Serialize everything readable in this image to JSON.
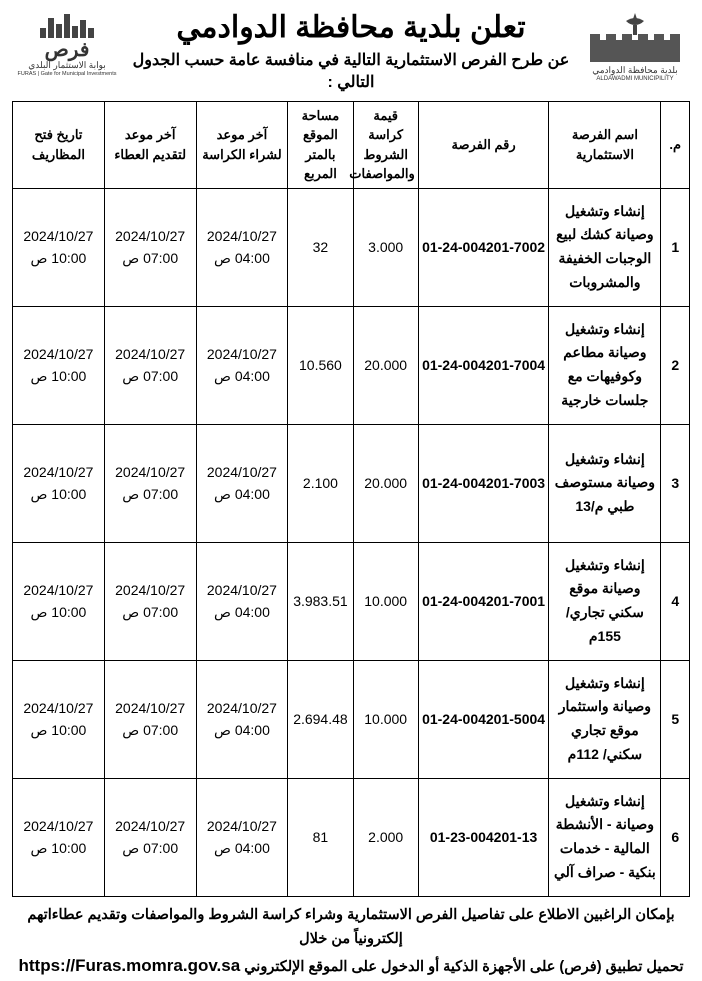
{
  "header": {
    "title": "تعلن بلدية محافظة الدوادمي",
    "subtitle": "عن طرح الفرص الاستثمارية التالية في منافسة عامة حسب الجدول التالي :",
    "right_logo": {
      "line1": "بلدية محافظة الدوادمي",
      "line2": "ALDAWADMI MUNICIPILITY"
    },
    "left_logo": {
      "brand": "فرص",
      "line1": "بوابة الاستثمار البلدي",
      "line2": "FURAS | Gate for Municipal Investments"
    }
  },
  "table": {
    "columns": [
      "م.",
      "اسم الفرصة الاستثمارية",
      "رقم الفرصة",
      "قيمة كراسة الشروط والمواصفات",
      "مساحة الموقع بالمتر المربع",
      "آخر موعد لشراء الكراسة",
      "آخر موعد لتقديم العطاء",
      "تاريخ فتح المظاريف"
    ],
    "rows": [
      {
        "num": "1",
        "name": "إنشاء وتشغيل وصيانة كشك لبيع الوجبات الخفيفة والمشروبات",
        "opp": "01-24-004201-7002",
        "price": "3.000",
        "area": "32",
        "d1_date": "2024/10/27",
        "d1_time": "04:00 ص",
        "d2_date": "2024/10/27",
        "d2_time": "07:00 ص",
        "d3_date": "2024/10/27",
        "d3_time": "10:00 ص"
      },
      {
        "num": "2",
        "name": "إنشاء وتشغيل وصيانة مطاعم وكوفيهات مع جلسات خارجية",
        "opp": "01-24-004201-7004",
        "price": "20.000",
        "area": "10.560",
        "d1_date": "2024/10/27",
        "d1_time": "04:00 ص",
        "d2_date": "2024/10/27",
        "d2_time": "07:00 ص",
        "d3_date": "2024/10/27",
        "d3_time": "10:00 ص"
      },
      {
        "num": "3",
        "name": "إنشاء وتشغيل وصيانة مستوصف طبي م/13",
        "opp": "01-24-004201-7003",
        "price": "20.000",
        "area": "2.100",
        "d1_date": "2024/10/27",
        "d1_time": "04:00 ص",
        "d2_date": "2024/10/27",
        "d2_time": "07:00 ص",
        "d3_date": "2024/10/27",
        "d3_time": "10:00 ص"
      },
      {
        "num": "4",
        "name": "إنشاء وتشغيل وصيانة موقع سكني تجاري/ 155م",
        "opp": "01-24-004201-7001",
        "price": "10.000",
        "area": "3.983.51",
        "d1_date": "2024/10/27",
        "d1_time": "04:00 ص",
        "d2_date": "2024/10/27",
        "d2_time": "07:00 ص",
        "d3_date": "2024/10/27",
        "d3_time": "10:00 ص"
      },
      {
        "num": "5",
        "name": "إنشاء وتشغيل وصيانة واستثمار موقع تجاري سكني/ 112م",
        "opp": "01-24-004201-5004",
        "price": "10.000",
        "area": "2.694.48",
        "d1_date": "2024/10/27",
        "d1_time": "04:00 ص",
        "d2_date": "2024/10/27",
        "d2_time": "07:00 ص",
        "d3_date": "2024/10/27",
        "d3_time": "10:00 ص"
      },
      {
        "num": "6",
        "name": "إنشاء وتشغيل وصيانة - الأنشطة المالية - خدمات بنكية - صراف آلي",
        "opp": "01-23-004201-13",
        "price": "2.000",
        "area": "81",
        "d1_date": "2024/10/27",
        "d1_time": "04:00 ص",
        "d2_date": "2024/10/27",
        "d2_time": "07:00 ص",
        "d3_date": "2024/10/27",
        "d3_time": "10:00 ص"
      }
    ]
  },
  "footer": {
    "line1": "بإمكان الراغبين الاطلاع على تفاصيل الفرص الاستثمارية وشراء كراسة الشروط والمواصفات وتقديم عطاءاتهم إلكترونياً من خلال",
    "line2_prefix": "تحميل تطبيق (فرص) على الأجهزة الذكية أو الدخول على الموقع الإلكتروني ",
    "url": "https://Furas.momra.gov.sa"
  },
  "style": {
    "border_color": "#000000",
    "background": "#ffffff",
    "text_color": "#000000"
  }
}
